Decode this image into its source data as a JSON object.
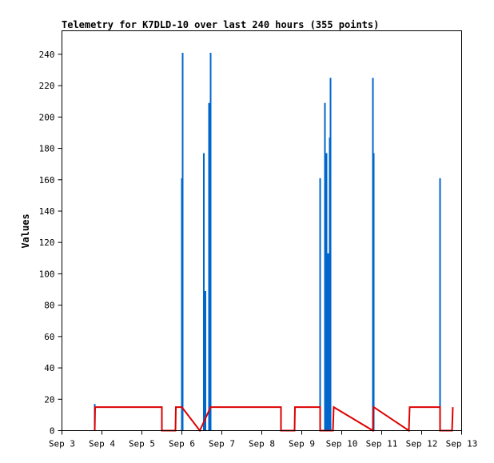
{
  "chart_data": {
    "type": "line",
    "title": "Telemetry for K7DLD-10 over last 240 hours (355 points)",
    "xlabel": "",
    "ylabel": "Values",
    "x_ticks": [
      "Sep 3",
      "Sep 4",
      "Sep 5",
      "Sep 6",
      "Sep 7",
      "Sep 8",
      "Sep 9",
      "Sep 10",
      "Sep 11",
      "Sep 12",
      "Sep 13"
    ],
    "xlim": [
      3.0,
      13.0
    ],
    "y_ticks": [
      0,
      20,
      40,
      60,
      80,
      100,
      120,
      140,
      160,
      180,
      200,
      220,
      240
    ],
    "ylim": [
      0,
      255
    ],
    "grid": false,
    "legend": "none",
    "series": [
      {
        "color": "#0066cc",
        "style": "spikes",
        "x": [
          3.82,
          6.0,
          6.02,
          6.55,
          6.57,
          6.58,
          6.59,
          6.68,
          6.7,
          6.72,
          9.46,
          9.58,
          9.62,
          9.64,
          9.66,
          9.68,
          9.7,
          9.72,
          10.78,
          10.8,
          12.46
        ],
        "y": [
          17,
          161,
          241,
          177,
          89,
          89,
          89,
          209,
          13,
          241,
          161,
          209,
          177,
          113,
          113,
          38,
          187,
          225,
          225,
          177,
          161
        ]
      },
      {
        "color": "#dd0000",
        "style": "line",
        "x": [
          3.82,
          3.83,
          5.5,
          5.5,
          5.84,
          5.85,
          6.0,
          6.45,
          6.45,
          6.72,
          6.75,
          8.48,
          8.48,
          8.82,
          8.83,
          9.46,
          9.46,
          9.78,
          9.8,
          10.78,
          10.78,
          10.8,
          11.68,
          11.7,
          12.46,
          12.46,
          12.76,
          12.78
        ],
        "y": [
          0,
          15,
          15,
          0,
          0,
          15,
          15,
          0,
          0,
          15,
          15,
          15,
          0,
          0,
          15,
          15,
          0,
          0,
          15,
          0,
          0,
          15,
          0,
          15,
          15,
          0,
          0,
          15
        ]
      }
    ]
  }
}
